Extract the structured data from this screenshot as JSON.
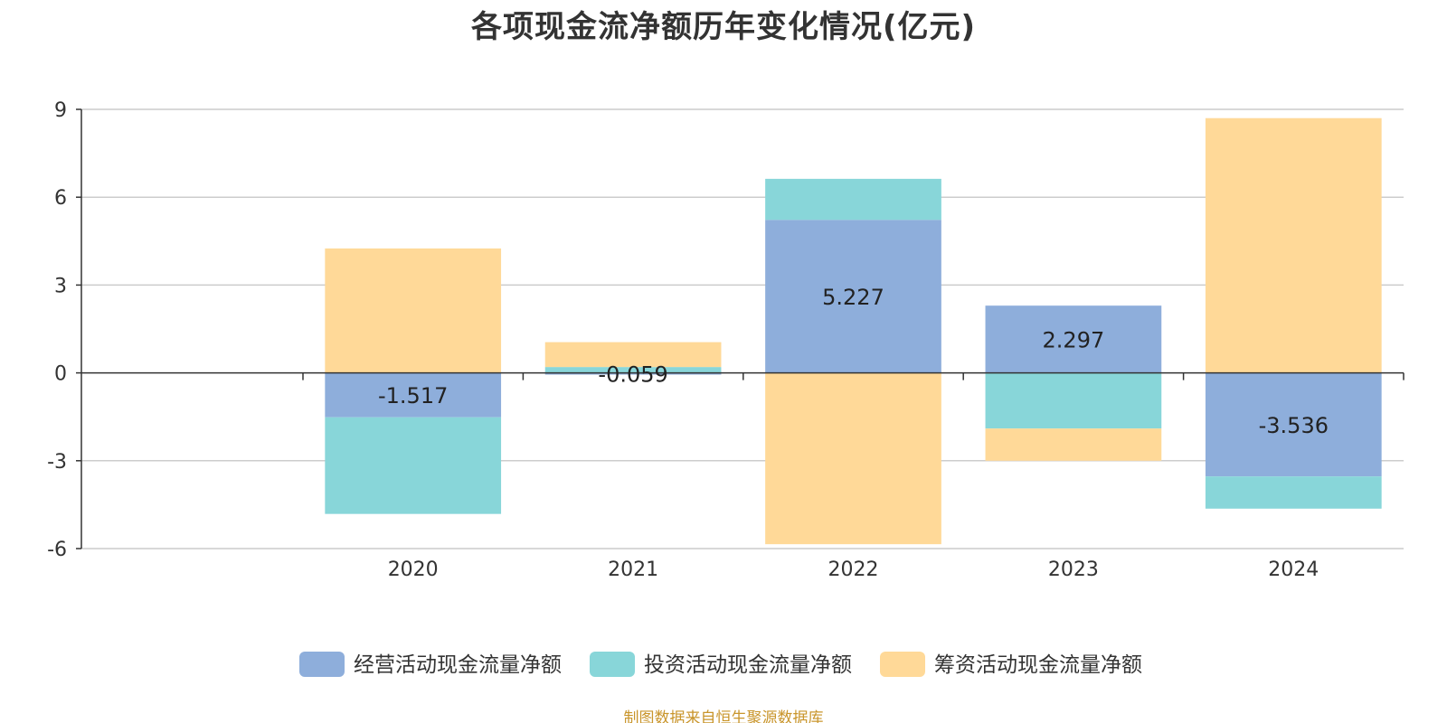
{
  "chart_data": {
    "type": "bar",
    "stacked": true,
    "title": "各项现金流净额历年变化情况(亿元)",
    "xlabel": "",
    "ylabel": "",
    "categories": [
      "2020",
      "2021",
      "2022",
      "2023",
      "2024"
    ],
    "ylim": [
      -6,
      9
    ],
    "yticks": [
      -6,
      -3,
      0,
      3,
      6,
      9
    ],
    "grid": true,
    "legend_position": "bottom",
    "series": [
      {
        "name": "经营活动现金流量净额",
        "color": "#8eaedb",
        "values": [
          -1.517,
          -0.059,
          5.227,
          2.297,
          -3.536
        ],
        "labels": [
          "-1.517",
          "-0.059",
          "5.227",
          "2.297",
          "-3.536"
        ]
      },
      {
        "name": "投资活动现金流量净额",
        "color": "#88d6d9",
        "values": [
          -3.3,
          0.2,
          1.4,
          -1.9,
          -1.1
        ],
        "labels": []
      },
      {
        "name": "筹资活动现金流量净额",
        "color": "#ffd998",
        "values": [
          4.25,
          0.85,
          -5.85,
          -1.1,
          8.7
        ],
        "labels": []
      }
    ],
    "source": "制图数据来自恒生聚源数据库"
  }
}
